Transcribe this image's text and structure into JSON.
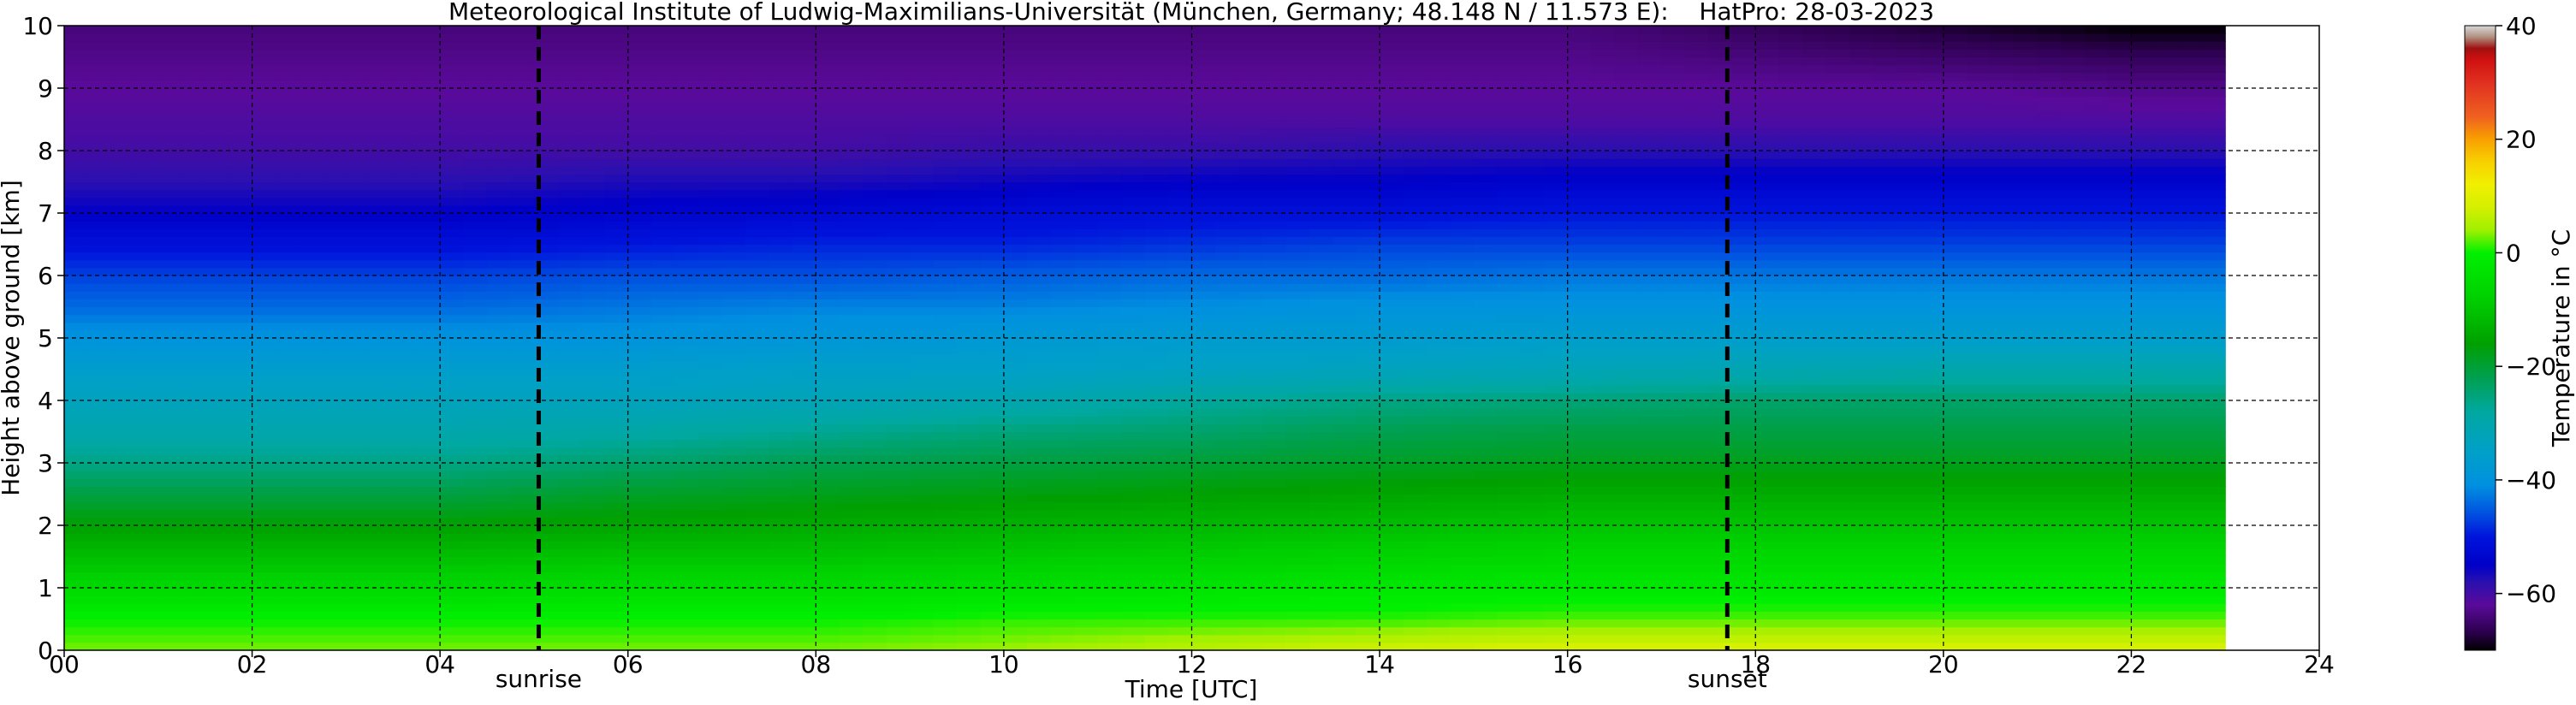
{
  "chart_data": {
    "type": "heatmap",
    "title": "Meteorological Institute of Ludwig-Maximilians-Universität (München, Germany; 48.148 N / 11.573 E):    HatPro: 28-03-2023",
    "xlabel": "Time [UTC]",
    "ylabel": "Height above ground [km]",
    "xlim": [
      0,
      24
    ],
    "ylim": [
      0,
      10
    ],
    "x_ticks": [
      "00",
      "02",
      "04",
      "06",
      "08",
      "10",
      "12",
      "14",
      "16",
      "18",
      "20",
      "22",
      "24"
    ],
    "y_ticks": [
      "0",
      "1",
      "2",
      "3",
      "4",
      "5",
      "6",
      "7",
      "8",
      "9",
      "10"
    ],
    "grid": true,
    "data_end_hour": 23,
    "height_km": [
      0,
      0.5,
      1,
      1.5,
      2,
      2.5,
      3,
      3.5,
      4,
      4.5,
      5,
      5.5,
      6,
      6.5,
      7,
      7.5,
      8,
      8.5,
      9,
      9.5,
      10
    ],
    "time_hours": [
      0,
      2,
      4,
      6,
      8,
      10,
      12,
      14,
      16,
      18,
      20,
      22
    ],
    "temperature_c": [
      [
        3,
        0,
        -6,
        -11,
        -16,
        -21,
        -26,
        -30,
        -33,
        -36,
        -40,
        -44,
        -47,
        -51,
        -55,
        -58,
        -60,
        -61,
        -62,
        -63,
        -64
      ],
      [
        3,
        0,
        -6,
        -11,
        -16,
        -21,
        -26,
        -30,
        -33,
        -36,
        -40,
        -44,
        -47,
        -51,
        -55,
        -58,
        -60,
        -61,
        -62,
        -63,
        -64
      ],
      [
        3,
        0,
        -6,
        -11,
        -16,
        -21,
        -26,
        -30,
        -33,
        -36,
        -40,
        -44,
        -47,
        -51,
        -55,
        -58,
        -60,
        -61,
        -62,
        -63,
        -64
      ],
      [
        3,
        0,
        -5,
        -10,
        -15,
        -19,
        -24,
        -29,
        -33,
        -36,
        -40,
        -43,
        -46,
        -50,
        -54,
        -57,
        -60,
        -61,
        -62,
        -63,
        -64
      ],
      [
        3,
        0,
        -5,
        -10,
        -14,
        -18,
        -22,
        -27,
        -32,
        -35,
        -39,
        -42,
        -46,
        -49,
        -53,
        -57,
        -60,
        -61,
        -62,
        -63,
        -64
      ],
      [
        4,
        1,
        -4,
        -9,
        -13,
        -17,
        -21,
        -25,
        -31,
        -35,
        -38,
        -42,
        -45,
        -49,
        -52,
        -56,
        -59,
        -61,
        -62,
        -63,
        -64
      ],
      [
        6,
        1,
        -3,
        -8,
        -12,
        -16,
        -20,
        -24,
        -28,
        -34,
        -37,
        -41,
        -44,
        -48,
        -51,
        -55,
        -59,
        -61,
        -62,
        -63,
        -64
      ],
      [
        8,
        1,
        -2,
        -7,
        -11,
        -15,
        -19,
        -22,
        -26,
        -33,
        -37,
        -40,
        -44,
        -47,
        -51,
        -55,
        -58,
        -61,
        -62,
        -63,
        -64
      ],
      [
        9,
        2,
        -2,
        -6,
        -10,
        -14,
        -18,
        -21,
        -25,
        -32,
        -36,
        -40,
        -43,
        -47,
        -50,
        -54,
        -58,
        -61,
        -62,
        -63,
        -64
      ],
      [
        9,
        2,
        -2,
        -6,
        -10,
        -14,
        -18,
        -21,
        -24,
        -31,
        -36,
        -40,
        -43,
        -47,
        -50,
        -54,
        -58,
        -61,
        -62,
        -64,
        -66
      ],
      [
        9,
        2,
        -2,
        -6,
        -10,
        -14,
        -18,
        -21,
        -24,
        -30,
        -36,
        -40,
        -43,
        -47,
        -50,
        -54,
        -58,
        -61,
        -62,
        -65,
        -68
      ],
      [
        9,
        2,
        -2,
        -6,
        -10,
        -14,
        -18,
        -21,
        -24,
        -30,
        -36,
        -40,
        -43,
        -47,
        -50,
        -54,
        -58,
        -61,
        -63,
        -66,
        -70
      ]
    ],
    "annotations": [
      {
        "label": "sunrise",
        "x_hour": 5.05
      },
      {
        "label": "sunset",
        "x_hour": 17.7
      }
    ],
    "colorbar": {
      "label": "Temperature in $^\\circ$C",
      "range": [
        -70,
        40
      ],
      "ticks": [
        "40",
        "20",
        "0",
        "−20",
        "−40",
        "−60"
      ],
      "tick_values": [
        40,
        20,
        0,
        -20,
        -40,
        -60
      ],
      "stops": [
        {
          "t": -70,
          "color": "#000000"
        },
        {
          "t": -67,
          "color": "#2a004a"
        },
        {
          "t": -62,
          "color": "#5a0a9a"
        },
        {
          "t": -58,
          "color": "#2a10b0"
        },
        {
          "t": -55,
          "color": "#0000c8"
        },
        {
          "t": -50,
          "color": "#0014dc"
        },
        {
          "t": -46,
          "color": "#0050e0"
        },
        {
          "t": -41,
          "color": "#0090e0"
        },
        {
          "t": -35,
          "color": "#00a0c8"
        },
        {
          "t": -28,
          "color": "#00a8a0"
        },
        {
          "t": -22,
          "color": "#00a050"
        },
        {
          "t": -16,
          "color": "#00a000"
        },
        {
          "t": -8,
          "color": "#00d000"
        },
        {
          "t": 0,
          "color": "#00f000"
        },
        {
          "t": 4,
          "color": "#a0f000"
        },
        {
          "t": 8,
          "color": "#d4f000"
        },
        {
          "t": 12,
          "color": "#f0f000"
        },
        {
          "t": 16,
          "color": "#f8d000"
        },
        {
          "t": 20,
          "color": "#f8a000"
        },
        {
          "t": 24,
          "color": "#f06020"
        },
        {
          "t": 30,
          "color": "#e03020"
        },
        {
          "t": 34,
          "color": "#d01010"
        },
        {
          "t": 36,
          "color": "#a01010"
        },
        {
          "t": 38,
          "color": "#b09080"
        },
        {
          "t": 40,
          "color": "#d8d8d8"
        }
      ]
    }
  }
}
